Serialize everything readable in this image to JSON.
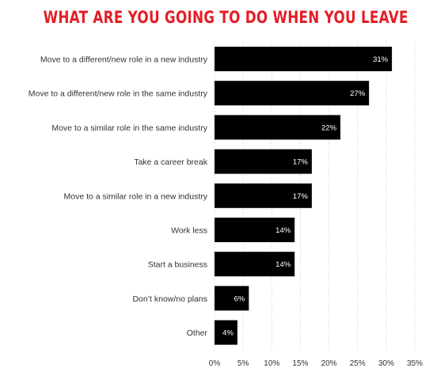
{
  "chart_data": {
    "type": "bar",
    "orientation": "horizontal",
    "title": "WHAT ARE YOU GOING TO DO WHEN YOU LEAVE",
    "categories": [
      "Move to a different/new role in a new industry",
      "Move to a different/new role in the same industry",
      "Move to a similar role in the same industry",
      "Take a career break",
      "Move to a similar role in a new industry",
      "Work less",
      "Start a business",
      "Don’t know/no plans",
      "Other"
    ],
    "values": [
      31,
      27,
      22,
      17,
      17,
      14,
      14,
      6,
      4
    ],
    "value_labels": [
      "31%",
      "27%",
      "22%",
      "17%",
      "17%",
      "14%",
      "14%",
      "6%",
      "4%"
    ],
    "ticks": [
      "0%",
      "5%",
      "10%",
      "15%",
      "20%",
      "25%",
      "30%",
      "35%"
    ],
    "xlim": [
      0,
      35
    ],
    "grid": true,
    "colors": {
      "title": "#e41e26",
      "bar": "#000000",
      "bar_label": "#ffffff"
    }
  }
}
